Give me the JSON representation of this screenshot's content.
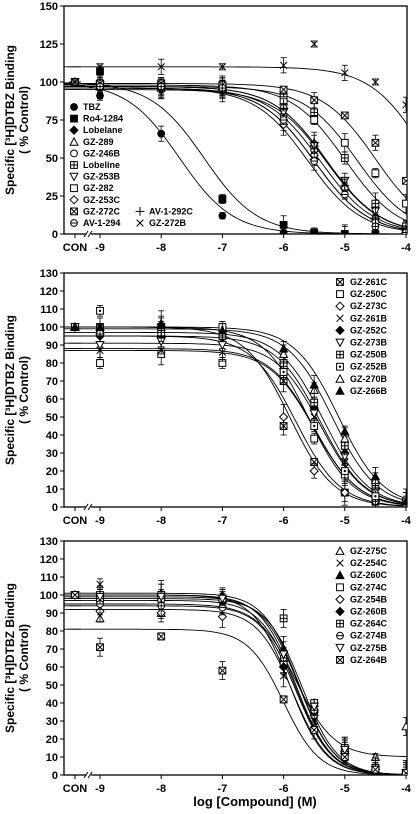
{
  "figure": {
    "xlabel": "log [Compound] (M)"
  },
  "chart_data": [
    {
      "type": "scatter",
      "ylabel_line1": "Specific [³H]DTBZ Binding",
      "ylabel_line2": "( % Control)",
      "ylim": [
        0,
        150
      ],
      "yticks": [
        0,
        25,
        50,
        75,
        100,
        125,
        150
      ],
      "xlim": [
        -10,
        -4
      ],
      "xticks": [
        -9,
        -8,
        -7,
        -6,
        -5,
        -4
      ],
      "xtick_labels": [
        "-9",
        "-8",
        "-7",
        "-6",
        "-5",
        "-4"
      ],
      "con_label": "CON",
      "x": [
        -9,
        -8,
        -7,
        -6,
        -5.5,
        -5,
        -4.5,
        -4
      ],
      "legend_position": "bottom-left",
      "series": [
        {
          "name": "TBZ",
          "marker": "circle-filled",
          "con": 100,
          "values": [
            91,
            66,
            12,
            1,
            0,
            0,
            0,
            0
          ],
          "fit": {
            "top": 100,
            "bottom": 0,
            "logIC50": -7.7,
            "hill": 1.0
          }
        },
        {
          "name": "Ro4-1284",
          "marker": "square-filled",
          "con": 100,
          "values": [
            107,
            96,
            23,
            6,
            1,
            0,
            0,
            0
          ],
          "fit": {
            "top": 100,
            "bottom": 0,
            "logIC50": -7.3,
            "hill": 1.0
          }
        },
        {
          "name": "Lobelane",
          "marker": "diamond-filled",
          "con": 100,
          "values": [
            97,
            96,
            94,
            75,
            49,
            30,
            10,
            0
          ],
          "fit": {
            "top": 96,
            "bottom": 0,
            "logIC50": -5.5,
            "hill": 1.0
          }
        },
        {
          "name": "GZ-289",
          "marker": "triangle-open",
          "con": 100,
          "values": [
            97,
            97,
            96,
            85,
            60,
            32,
            12,
            3
          ],
          "fit": {
            "top": 97,
            "bottom": 0,
            "logIC50": -5.3,
            "hill": 1.0
          }
        },
        {
          "name": "GZ-246B",
          "marker": "circle-open",
          "con": 100,
          "values": [
            96,
            95,
            95,
            78,
            55,
            30,
            10,
            2
          ],
          "fit": {
            "top": 96,
            "bottom": 0,
            "logIC50": -5.4,
            "hill": 1.0
          }
        },
        {
          "name": "Lobeline",
          "marker": "square-cross",
          "con": 100,
          "values": [
            98,
            98,
            97,
            92,
            80,
            50,
            20,
            5
          ],
          "fit": {
            "top": 98,
            "bottom": 0,
            "logIC50": -5.0,
            "hill": 1.0
          }
        },
        {
          "name": "GZ-253B",
          "marker": "triangle-down-open",
          "con": 100,
          "values": [
            98,
            97,
            96,
            80,
            58,
            35,
            15,
            3
          ],
          "fit": {
            "top": 97,
            "bottom": 0,
            "logIC50": -5.3,
            "hill": 1.0
          }
        },
        {
          "name": "GZ-282",
          "marker": "square-open",
          "con": 100,
          "values": [
            97,
            96,
            95,
            88,
            75,
            60,
            40,
            20
          ],
          "fit": {
            "top": 97,
            "bottom": 0,
            "logIC50": -4.8,
            "hill": 1.0
          }
        },
        {
          "name": "GZ-253C",
          "marker": "diamond-open",
          "con": 100,
          "values": [
            97,
            96,
            95,
            72,
            52,
            30,
            8,
            2
          ],
          "fit": {
            "top": 96,
            "bottom": 0,
            "logIC50": -5.5,
            "hill": 1.0
          }
        },
        {
          "name": "GZ-272C",
          "marker": "square-x",
          "con": 100,
          "values": [
            99,
            99,
            98,
            95,
            88,
            78,
            60,
            35
          ],
          "fit": {
            "top": 99,
            "bottom": 0,
            "logIC50": -4.5,
            "hill": 1.0
          }
        },
        {
          "name": "AV-1-294",
          "marker": "circle-line",
          "con": 100,
          "values": [
            97,
            97,
            96,
            75,
            48,
            26,
            5,
            1
          ],
          "fit": {
            "top": 96,
            "bottom": 0,
            "logIC50": -5.6,
            "hill": 1.0
          }
        },
        {
          "name": "AV-1-292C",
          "marker": "plus",
          "con": 100,
          "values": [
            95,
            95,
            94,
            85,
            60,
            32,
            10,
            1
          ],
          "fit": {
            "top": 95,
            "bottom": 0,
            "logIC50": -5.3,
            "hill": 1.0
          }
        },
        {
          "name": "GZ-272B",
          "marker": "x",
          "con": 100,
          "values": [
            110,
            110,
            110,
            111,
            125,
            106,
            100,
            85
          ],
          "fit": {
            "top": 110,
            "bottom": 0,
            "logIC50": -3.7,
            "hill": 1.0
          }
        }
      ]
    },
    {
      "type": "scatter",
      "ylabel_line1": "Specific [³H]DTBZ Binding",
      "ylabel_line2": "( % Control)",
      "ylim": [
        0,
        130
      ],
      "yticks": [
        0,
        10,
        20,
        30,
        40,
        50,
        60,
        70,
        80,
        90,
        100,
        110,
        120,
        130
      ],
      "xlim": [
        -10,
        -4
      ],
      "xticks": [
        -9,
        -8,
        -7,
        -6,
        -5,
        -4
      ],
      "xtick_labels": [
        "-9",
        "-8",
        "-7",
        "-6",
        "-5",
        "-4"
      ],
      "con_label": "CON",
      "x": [
        -9,
        -8,
        -7,
        -6,
        -5.5,
        -5,
        -4.5,
        -4
      ],
      "legend_position": "top-right",
      "series": [
        {
          "name": "GZ-261C",
          "marker": "square-x",
          "con": 100,
          "values": [
            100,
            100,
            98,
            45,
            25,
            8,
            3,
            1
          ],
          "fit": {
            "top": 100,
            "bottom": 0,
            "logIC50": -5.9,
            "hill": 1.2
          }
        },
        {
          "name": "GZ-250C",
          "marker": "square-open",
          "con": 100,
          "values": [
            80,
            85,
            80,
            70,
            38,
            18,
            5,
            2
          ],
          "fit": {
            "top": 88,
            "bottom": 0,
            "logIC50": -5.5,
            "hill": 1.2
          }
        },
        {
          "name": "GZ-273C",
          "marker": "diamond-open",
          "con": 100,
          "values": [
            95,
            95,
            94,
            50,
            20,
            8,
            3,
            1
          ],
          "fit": {
            "top": 95,
            "bottom": 0,
            "logIC50": -5.8,
            "hill": 1.2
          }
        },
        {
          "name": "GZ-261B",
          "marker": "x",
          "con": 100,
          "values": [
            87,
            87,
            86,
            70,
            50,
            25,
            8,
            2
          ],
          "fit": {
            "top": 87,
            "bottom": 0,
            "logIC50": -5.5,
            "hill": 1.2
          }
        },
        {
          "name": "GZ-252C",
          "marker": "diamond-filled",
          "con": 100,
          "values": [
            95,
            94,
            94,
            80,
            55,
            30,
            10,
            2
          ],
          "fit": {
            "top": 95,
            "bottom": 0,
            "logIC50": -5.4,
            "hill": 1.2
          }
        },
        {
          "name": "GZ-273B",
          "marker": "triangle-down-open",
          "con": 100,
          "values": [
            90,
            92,
            90,
            75,
            52,
            28,
            8,
            2
          ],
          "fit": {
            "top": 91,
            "bottom": 0,
            "logIC50": -5.4,
            "hill": 1.2
          }
        },
        {
          "name": "GZ-250B",
          "marker": "square-cross",
          "con": 100,
          "values": [
            97,
            97,
            95,
            80,
            58,
            34,
            12,
            3
          ],
          "fit": {
            "top": 97,
            "bottom": 0,
            "logIC50": -5.35,
            "hill": 1.2
          }
        },
        {
          "name": "GZ-252B",
          "marker": "square-dot",
          "con": 100,
          "values": [
            109,
            100,
            100,
            75,
            45,
            20,
            6,
            2
          ],
          "fit": {
            "top": 100,
            "bottom": 0,
            "logIC50": -5.6,
            "hill": 1.2
          }
        },
        {
          "name": "GZ-270B",
          "marker": "triangle-open",
          "con": 100,
          "values": [
            98,
            102,
            98,
            85,
            65,
            38,
            15,
            3
          ],
          "fit": {
            "top": 99,
            "bottom": 0,
            "logIC50": -5.2,
            "hill": 1.2
          }
        },
        {
          "name": "GZ-266B",
          "marker": "triangle-filled",
          "con": 100,
          "values": [
            100,
            101,
            98,
            88,
            68,
            42,
            17,
            3
          ],
          "fit": {
            "top": 100,
            "bottom": 0,
            "logIC50": -5.1,
            "hill": 1.2
          }
        }
      ]
    },
    {
      "type": "scatter",
      "ylabel_line1": "Specific [³H]DTBZ Binding",
      "ylabel_line2": "( % Control)",
      "ylim": [
        0,
        130
      ],
      "yticks": [
        0,
        10,
        20,
        30,
        40,
        50,
        60,
        70,
        80,
        90,
        100,
        110,
        120,
        130
      ],
      "xlim": [
        -10,
        -4
      ],
      "xticks": [
        -9,
        -8,
        -7,
        -6,
        -5,
        -4
      ],
      "xtick_labels": [
        "-9",
        "-8",
        "-7",
        "-6",
        "-5",
        "-4"
      ],
      "con_label": "CON",
      "x": [
        -9,
        -8,
        -7,
        -6,
        -5.5,
        -5,
        -4.5,
        -4
      ],
      "legend_position": "top-right",
      "series": [
        {
          "name": "GZ-275C",
          "marker": "triangle-open",
          "con": 100,
          "values": [
            87,
            90,
            95,
            65,
            40,
            15,
            10,
            27
          ],
          "fit": {
            "top": 95,
            "bottom": 10,
            "logIC50": -5.8,
            "hill": 1.4
          }
        },
        {
          "name": "GZ-254C",
          "marker": "x",
          "con": 100,
          "values": [
            106,
            100,
            98,
            55,
            30,
            12,
            3,
            1
          ],
          "fit": {
            "top": 100,
            "bottom": 0,
            "logIC50": -5.9,
            "hill": 1.5
          }
        },
        {
          "name": "GZ-260C",
          "marker": "triangle-filled",
          "con": 100,
          "values": [
            100,
            101,
            100,
            70,
            38,
            14,
            3,
            1
          ],
          "fit": {
            "top": 101,
            "bottom": 0,
            "logIC50": -5.75,
            "hill": 1.5
          }
        },
        {
          "name": "GZ-274C",
          "marker": "square-open",
          "con": 100,
          "values": [
            100,
            100,
            98,
            62,
            35,
            12,
            3,
            1
          ],
          "fit": {
            "top": 100,
            "bottom": 0,
            "logIC50": -5.8,
            "hill": 1.5
          }
        },
        {
          "name": "GZ-254B",
          "marker": "diamond-open",
          "con": 100,
          "values": [
            91,
            90,
            88,
            60,
            33,
            12,
            3,
            1
          ],
          "fit": {
            "top": 92,
            "bottom": 0,
            "logIC50": -5.85,
            "hill": 1.5
          }
        },
        {
          "name": "GZ-260B",
          "marker": "diamond-filled",
          "con": 100,
          "values": [
            97,
            97,
            96,
            60,
            35,
            12,
            3,
            1
          ],
          "fit": {
            "top": 97,
            "bottom": 0,
            "logIC50": -5.8,
            "hill": 1.5
          }
        },
        {
          "name": "GZ-264C",
          "marker": "square-cross",
          "con": 100,
          "values": [
            98,
            98,
            98,
            87,
            40,
            15,
            4,
            1
          ],
          "fit": {
            "top": 98,
            "bottom": 0,
            "logIC50": -5.7,
            "hill": 1.5
          }
        },
        {
          "name": "GZ-274B",
          "marker": "circle-line",
          "con": 100,
          "values": [
            95,
            94,
            93,
            65,
            36,
            13,
            3,
            1
          ],
          "fit": {
            "top": 94,
            "bottom": 0,
            "logIC50": -5.8,
            "hill": 1.5
          }
        },
        {
          "name": "GZ-275B",
          "marker": "triangle-down-open",
          "con": 100,
          "values": [
            99,
            99,
            98,
            67,
            38,
            14,
            3,
            1
          ],
          "fit": {
            "top": 99,
            "bottom": 0,
            "logIC50": -5.75,
            "hill": 1.5
          }
        },
        {
          "name": "GZ-264B",
          "marker": "square-x",
          "con": 100,
          "values": [
            71,
            77,
            58,
            42,
            25,
            10,
            3,
            1
          ],
          "fit": {
            "top": 81,
            "bottom": 0,
            "logIC50": -6.0,
            "hill": 1.5
          }
        }
      ]
    }
  ]
}
